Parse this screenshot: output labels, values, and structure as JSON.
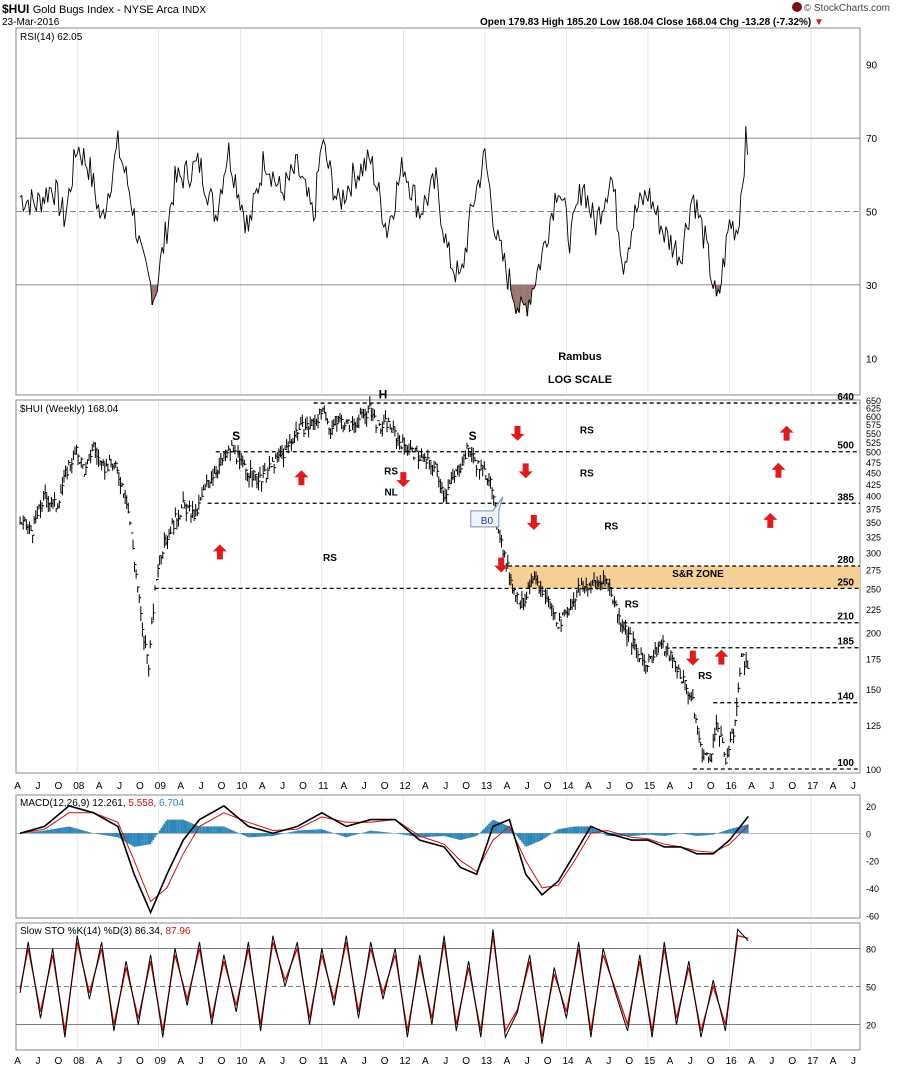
{
  "header": {
    "ticker": "$HUI",
    "name": "Gold Bugs Index - NYSE Arca",
    "index_tag": "INDX",
    "date": "23-Mar-2016",
    "ohlc": "Open 179.83  High 185.20  Low 168.04  Close 168.04  Chg -13.28 (-7.32%)",
    "ohlc_arrow": "▼",
    "watermark": "© StockCharts.com"
  },
  "colors": {
    "red": "#e11b1b",
    "zone": "#f6cf94",
    "rsi_fill": "#9b7670",
    "macd_hist": "#2e86b8",
    "signal": "#cc1111",
    "grid": "#d8d8d8"
  },
  "chart_data": [
    {
      "type": "line",
      "panel": "RSI",
      "label": "RSI(14) 62.05",
      "ylim": [
        0,
        100
      ],
      "yticks": [
        10,
        30,
        50,
        70,
        90
      ],
      "reference_lines": [
        30,
        50,
        70
      ],
      "annotations": [
        "Rambus",
        "LOG SCALE"
      ],
      "series": [
        {
          "name": "RSI(14)",
          "x": [
            2007.3,
            2007.5,
            2007.7,
            2007.85,
            2008.0,
            2008.15,
            2008.3,
            2008.5,
            2008.65,
            2008.8,
            2008.95,
            2009.2,
            2009.5,
            2009.7,
            2009.85,
            2010.1,
            2010.3,
            2010.5,
            2010.7,
            2010.9,
            2011.0,
            2011.2,
            2011.4,
            2011.6,
            2011.8,
            2012.0,
            2012.2,
            2012.4,
            2012.55,
            2012.7,
            2012.85,
            2013.0,
            2013.15,
            2013.3,
            2013.45,
            2013.55,
            2013.7,
            2013.9,
            2014.05,
            2014.2,
            2014.35,
            2014.55,
            2014.7,
            2014.85,
            2015.0,
            2015.2,
            2015.4,
            2015.55,
            2015.7,
            2015.85,
            2016.0,
            2016.1,
            2016.2,
            2016.23
          ],
          "values": [
            54,
            52,
            57,
            48,
            68,
            62,
            47,
            68,
            55,
            36,
            27,
            58,
            63,
            49,
            67,
            45,
            65,
            55,
            62,
            48,
            69,
            52,
            60,
            64,
            45,
            63,
            50,
            58,
            38,
            31,
            52,
            65,
            42,
            31,
            22,
            27,
            38,
            58,
            42,
            58,
            46,
            60,
            36,
            50,
            55,
            44,
            38,
            55,
            42,
            24,
            47,
            45,
            69,
            62
          ]
        }
      ],
      "shaded_below_30": "brown"
    },
    {
      "type": "candlestick",
      "panel": "price",
      "label": "$HUI (Weekly) 168.04",
      "scale": "log",
      "ylim": [
        98,
        650
      ],
      "yticks": [
        100,
        125,
        150,
        175,
        200,
        225,
        250,
        275,
        300,
        325,
        350,
        375,
        400,
        425,
        450,
        475,
        500,
        525,
        550,
        575,
        600,
        625,
        650
      ],
      "x_axis_labels": [
        "A",
        "J",
        "O",
        "08",
        "A",
        "J",
        "O",
        "09",
        "A",
        "J",
        "O",
        "10",
        "A",
        "J",
        "O",
        "11",
        "A",
        "J",
        "O",
        "12",
        "A",
        "J",
        "O",
        "13",
        "A",
        "J",
        "O",
        "14",
        "A",
        "J",
        "O",
        "15",
        "A",
        "J",
        "O",
        "16",
        "A",
        "J",
        "O",
        "17",
        "A",
        "J"
      ],
      "series": [
        {
          "name": "$HUI",
          "x": [
            2007.3,
            2007.45,
            2007.6,
            2007.75,
            2007.9,
            2008.0,
            2008.1,
            2008.2,
            2008.3,
            2008.45,
            2008.6,
            2008.7,
            2008.8,
            2008.88,
            2009.0,
            2009.15,
            2009.3,
            2009.45,
            2009.6,
            2009.75,
            2009.9,
            2010.0,
            2010.1,
            2010.25,
            2010.4,
            2010.55,
            2010.7,
            2010.85,
            2011.0,
            2011.1,
            2011.2,
            2011.35,
            2011.5,
            2011.6,
            2011.7,
            2011.8,
            2011.95,
            2012.1,
            2012.25,
            2012.4,
            2012.5,
            2012.65,
            2012.8,
            2012.9,
            2013.05,
            2013.15,
            2013.25,
            2013.35,
            2013.45,
            2013.6,
            2013.75,
            2013.9,
            2014.0,
            2014.15,
            2014.3,
            2014.5,
            2014.65,
            2014.75,
            2014.9,
            2015.0,
            2015.15,
            2015.3,
            2015.45,
            2015.55,
            2015.65,
            2015.75,
            2015.85,
            2015.95,
            2016.05,
            2016.15,
            2016.23
          ],
          "values": [
            350,
            335,
            400,
            380,
            470,
            500,
            450,
            520,
            460,
            470,
            400,
            290,
            200,
            170,
            290,
            340,
            380,
            360,
            430,
            470,
            510,
            470,
            450,
            430,
            470,
            500,
            560,
            570,
            610,
            560,
            590,
            570,
            600,
            620,
            560,
            580,
            530,
            500,
            480,
            460,
            400,
            450,
            510,
            470,
            440,
            350,
            290,
            250,
            230,
            260,
            240,
            210,
            220,
            250,
            255,
            260,
            215,
            200,
            175,
            170,
            190,
            175,
            155,
            140,
            110,
            105,
            125,
            105,
            120,
            175,
            168
          ]
        }
      ],
      "levels": [
        {
          "value": 640,
          "label": "640"
        },
        {
          "value": 500,
          "label": "500"
        },
        {
          "value": 385,
          "label": "385"
        },
        {
          "value": 280,
          "label": "280"
        },
        {
          "value": 250,
          "label": "250"
        },
        {
          "value": 210,
          "label": "210"
        },
        {
          "value": 185,
          "label": "185"
        },
        {
          "value": 140,
          "label": "140"
        },
        {
          "value": 100,
          "label": "100"
        }
      ],
      "zone": {
        "from": 250,
        "to": 280,
        "label": "S&R ZONE"
      },
      "annotations": [
        {
          "text": "H",
          "x": 2011.75,
          "y": 655
        },
        {
          "text": "S",
          "x": 2009.95,
          "y": 530
        },
        {
          "text": "S",
          "x": 2012.85,
          "y": 530
        },
        {
          "text": "RS",
          "x": 2011.85,
          "y": 446
        },
        {
          "text": "NL",
          "x": 2011.85,
          "y": 400
        },
        {
          "text": "RS",
          "x": 2011.1,
          "y": 287
        },
        {
          "text": "RS",
          "x": 2014.25,
          "y": 549
        },
        {
          "text": "RS",
          "x": 2014.25,
          "y": 441
        },
        {
          "text": "RS",
          "x": 2014.55,
          "y": 337
        },
        {
          "text": "RS",
          "x": 2014.8,
          "y": 227
        },
        {
          "text": "RS",
          "x": 2015.7,
          "y": 158
        }
      ],
      "arrows": [
        {
          "dir": "up",
          "x": 2009.75,
          "y": 300
        },
        {
          "dir": "up",
          "x": 2010.75,
          "y": 437
        },
        {
          "dir": "down",
          "x": 2012.0,
          "y": 435
        },
        {
          "dir": "down",
          "x": 2013.4,
          "y": 550
        },
        {
          "dir": "down",
          "x": 2013.5,
          "y": 455
        },
        {
          "dir": "down",
          "x": 2013.6,
          "y": 350
        },
        {
          "dir": "down",
          "x": 2013.2,
          "y": 282
        },
        {
          "dir": "down",
          "x": 2015.55,
          "y": 176
        },
        {
          "dir": "up",
          "x": 2015.9,
          "y": 176
        },
        {
          "dir": "up",
          "x": 2016.7,
          "y": 548
        },
        {
          "dir": "up",
          "x": 2016.6,
          "y": 454
        },
        {
          "dir": "up",
          "x": 2016.5,
          "y": 352
        }
      ],
      "callout": {
        "text": "B0",
        "x": 2012.95,
        "y": 352
      }
    },
    {
      "type": "line",
      "panel": "MACD",
      "label_main": "MACD(12,26,9)",
      "macd_value": "12.261",
      "signal_value": "5.558",
      "hist_value": "6.704",
      "ylim": [
        -62,
        28
      ],
      "yticks": [
        -60,
        -40,
        -20,
        0,
        20
      ],
      "series": [
        {
          "name": "MACD",
          "x": [
            2007.3,
            2007.6,
            2007.9,
            2008.2,
            2008.5,
            2008.7,
            2008.9,
            2009.1,
            2009.3,
            2009.5,
            2009.8,
            2010.1,
            2010.4,
            2010.7,
            2011.0,
            2011.3,
            2011.6,
            2011.9,
            2012.2,
            2012.5,
            2012.7,
            2012.9,
            2013.1,
            2013.3,
            2013.5,
            2013.7,
            2013.9,
            2014.1,
            2014.3,
            2014.5,
            2014.8,
            2015.0,
            2015.2,
            2015.4,
            2015.6,
            2015.8,
            2016.0,
            2016.23
          ],
          "values": [
            0,
            5,
            20,
            15,
            5,
            -30,
            -58,
            -30,
            -5,
            10,
            20,
            5,
            0,
            5,
            15,
            5,
            10,
            10,
            -5,
            -10,
            -25,
            -30,
            5,
            10,
            -30,
            -45,
            -35,
            -15,
            5,
            0,
            -5,
            -5,
            -10,
            -10,
            -15,
            -15,
            -5,
            12.3
          ]
        },
        {
          "name": "Signal",
          "x": [
            2007.3,
            2007.6,
            2007.9,
            2008.2,
            2008.5,
            2008.7,
            2008.9,
            2009.1,
            2009.3,
            2009.5,
            2009.8,
            2010.1,
            2010.4,
            2010.7,
            2011.0,
            2011.3,
            2011.6,
            2011.9,
            2012.2,
            2012.5,
            2012.7,
            2012.9,
            2013.1,
            2013.3,
            2013.5,
            2013.7,
            2013.9,
            2014.1,
            2014.3,
            2014.5,
            2014.8,
            2015.0,
            2015.2,
            2015.4,
            2015.6,
            2015.8,
            2016.0,
            2016.23
          ],
          "values": [
            0,
            3,
            15,
            15,
            8,
            -20,
            -50,
            -40,
            -15,
            5,
            15,
            8,
            2,
            3,
            12,
            8,
            8,
            10,
            -2,
            -8,
            -20,
            -28,
            -5,
            5,
            -20,
            -40,
            -38,
            -20,
            0,
            2,
            -3,
            -4,
            -8,
            -10,
            -13,
            -14,
            -8,
            5.6
          ]
        }
      ],
      "histogram": "blue bars of MACD minus Signal"
    },
    {
      "type": "line",
      "panel": "Slow STO",
      "label_main": "Slow STO %K(14) %D(3)",
      "k_value": "86.34",
      "d_value": "87.96",
      "ylim": [
        0,
        100
      ],
      "yticks": [
        20,
        50,
        80
      ],
      "reference_lines": [
        20,
        50,
        80
      ],
      "series": [
        {
          "name": "%K",
          "x": [
            2007.3,
            2007.4,
            2007.55,
            2007.7,
            2007.85,
            2008.0,
            2008.15,
            2008.3,
            2008.45,
            2008.6,
            2008.75,
            2008.9,
            2009.05,
            2009.2,
            2009.35,
            2009.5,
            2009.65,
            2009.8,
            2009.95,
            2010.1,
            2010.25,
            2010.4,
            2010.55,
            2010.7,
            2010.85,
            2011.0,
            2011.15,
            2011.3,
            2011.45,
            2011.6,
            2011.75,
            2011.9,
            2012.05,
            2012.2,
            2012.35,
            2012.5,
            2012.65,
            2012.8,
            2012.95,
            2013.1,
            2013.25,
            2013.4,
            2013.55,
            2013.7,
            2013.85,
            2014.0,
            2014.15,
            2014.3,
            2014.45,
            2014.6,
            2014.75,
            2014.9,
            2015.05,
            2015.2,
            2015.35,
            2015.5,
            2015.65,
            2015.8,
            2015.95,
            2016.1,
            2016.23
          ],
          "values": [
            45,
            85,
            25,
            80,
            10,
            90,
            40,
            85,
            15,
            70,
            20,
            75,
            10,
            80,
            35,
            85,
            20,
            75,
            30,
            85,
            15,
            90,
            50,
            85,
            20,
            80,
            35,
            90,
            25,
            85,
            40,
            80,
            10,
            75,
            20,
            90,
            15,
            70,
            10,
            95,
            10,
            30,
            75,
            5,
            65,
            25,
            85,
            10,
            80,
            45,
            15,
            75,
            10,
            85,
            20,
            70,
            10,
            55,
            15,
            95,
            86
          ]
        },
        {
          "name": "%D",
          "x": [
            2007.3,
            2007.4,
            2007.55,
            2007.7,
            2007.85,
            2008.0,
            2008.15,
            2008.3,
            2008.45,
            2008.6,
            2008.75,
            2008.9,
            2009.05,
            2009.2,
            2009.35,
            2009.5,
            2009.65,
            2009.8,
            2009.95,
            2010.1,
            2010.25,
            2010.4,
            2010.55,
            2010.7,
            2010.85,
            2011.0,
            2011.15,
            2011.3,
            2011.45,
            2011.6,
            2011.75,
            2011.9,
            2012.05,
            2012.2,
            2012.35,
            2012.5,
            2012.65,
            2012.8,
            2012.95,
            2013.1,
            2013.25,
            2013.4,
            2013.55,
            2013.7,
            2013.85,
            2014.0,
            2014.15,
            2014.3,
            2014.45,
            2014.6,
            2014.75,
            2014.9,
            2015.05,
            2015.2,
            2015.35,
            2015.5,
            2015.65,
            2015.8,
            2015.95,
            2016.1,
            2016.23
          ],
          "values": [
            48,
            80,
            30,
            75,
            15,
            85,
            45,
            80,
            20,
            65,
            25,
            70,
            15,
            75,
            40,
            80,
            25,
            70,
            35,
            80,
            20,
            85,
            55,
            80,
            25,
            75,
            40,
            85,
            30,
            80,
            45,
            75,
            15,
            70,
            25,
            85,
            20,
            65,
            15,
            90,
            15,
            32,
            70,
            10,
            60,
            30,
            80,
            15,
            75,
            48,
            20,
            70,
            15,
            80,
            25,
            65,
            15,
            50,
            20,
            90,
            88
          ]
        }
      ]
    }
  ]
}
